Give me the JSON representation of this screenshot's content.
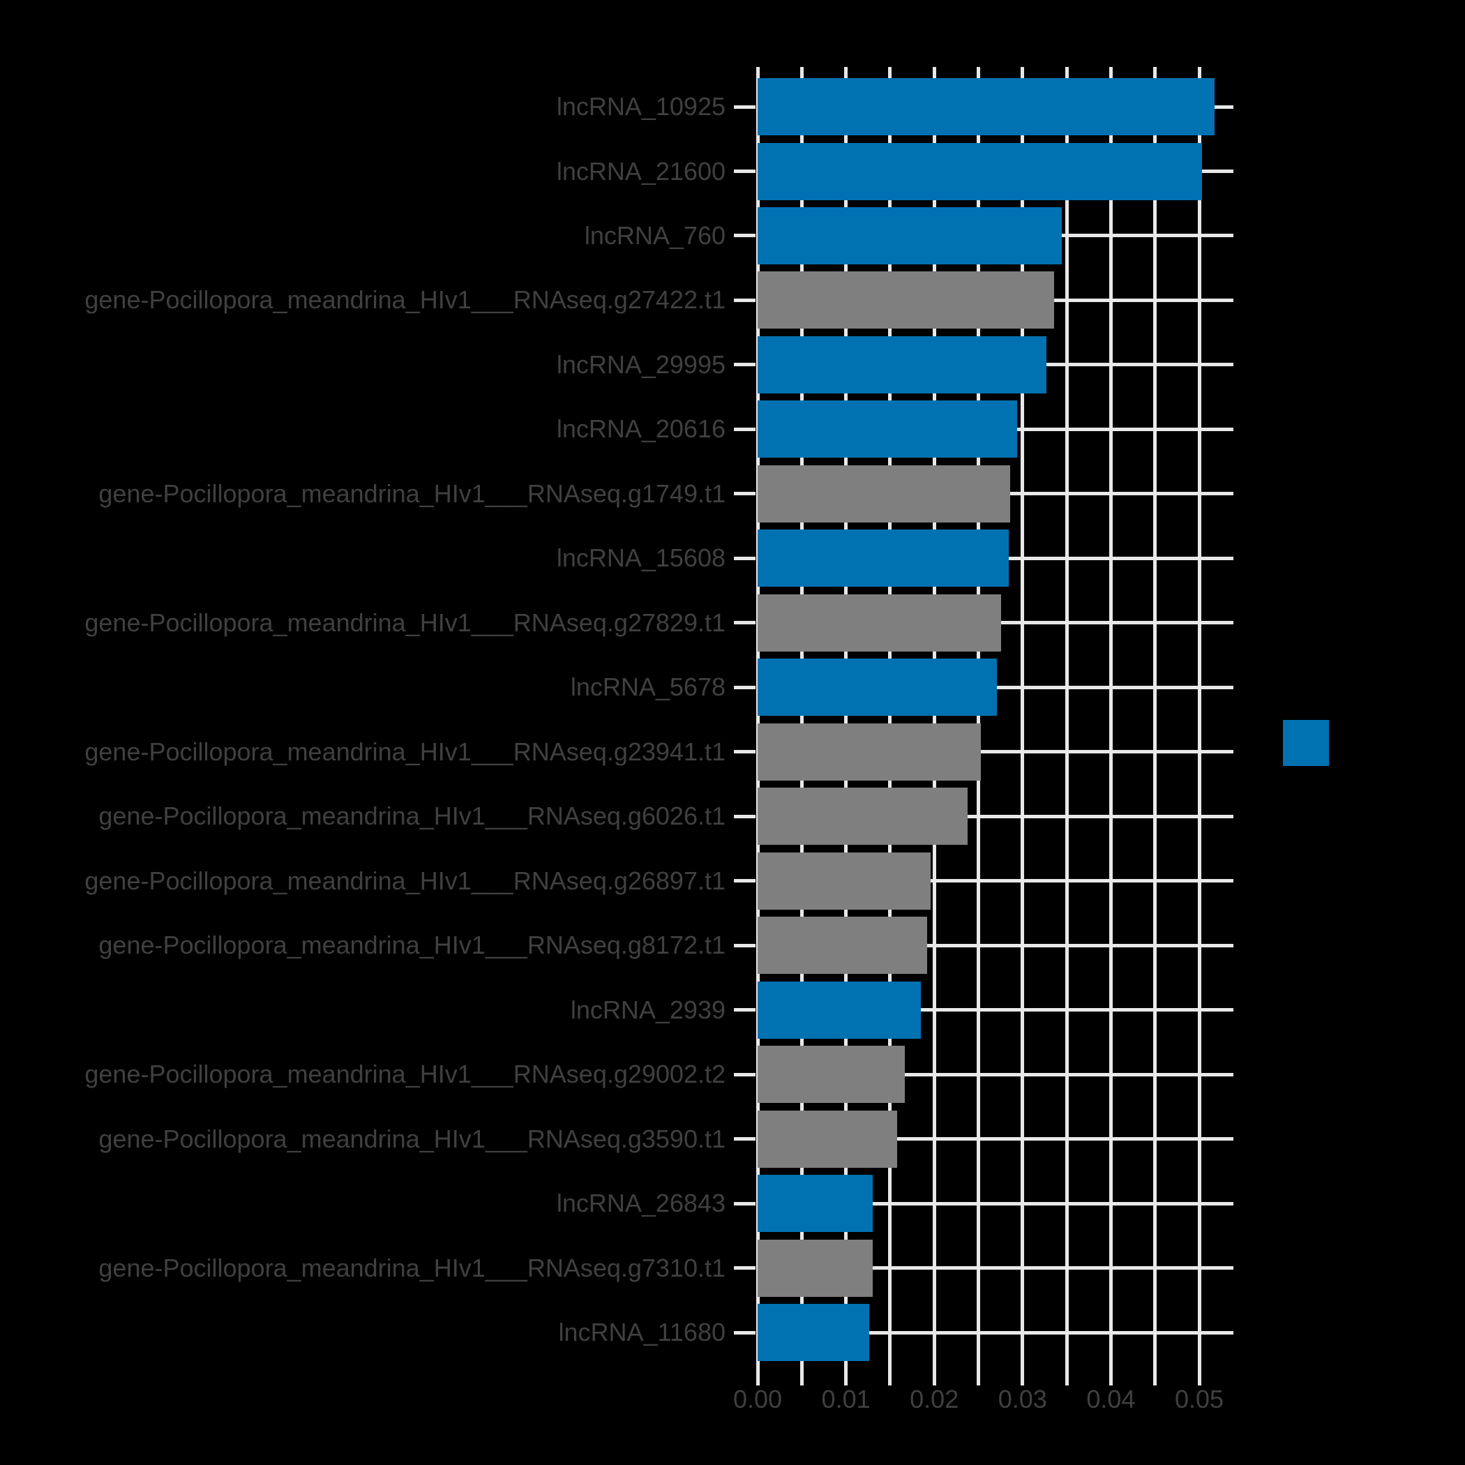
{
  "chart_data": {
    "type": "bar",
    "orientation": "horizontal",
    "title": "",
    "xlabel": "",
    "ylabel": "",
    "categories": [
      "lncRNA_10925",
      "lncRNA_21600",
      "lncRNA_760",
      "gene-Pocillopora_meandrina_HIv1___RNAseq.g27422.t1",
      "lncRNA_29995",
      "lncRNA_20616",
      "gene-Pocillopora_meandrina_HIv1___RNAseq.g1749.t1",
      "lncRNA_15608",
      "gene-Pocillopora_meandrina_HIv1___RNAseq.g27829.t1",
      "lncRNA_5678",
      "gene-Pocillopora_meandrina_HIv1___RNAseq.g23941.t1",
      "gene-Pocillopora_meandrina_HIv1___RNAseq.g6026.t1",
      "gene-Pocillopora_meandrina_HIv1___RNAseq.g26897.t1",
      "gene-Pocillopora_meandrina_HIv1___RNAseq.g8172.t1",
      "lncRNA_2939",
      "gene-Pocillopora_meandrina_HIv1___RNAseq.g29002.t2",
      "gene-Pocillopora_meandrina_HIv1___RNAseq.g3590.t1",
      "lncRNA_26843",
      "gene-Pocillopora_meandrina_HIv1___RNAseq.g7310.t1",
      "lncRNA_11680"
    ],
    "values": [
      0.0517,
      0.0503,
      0.0344,
      0.0336,
      0.0327,
      0.0294,
      0.0286,
      0.0284,
      0.0276,
      0.0271,
      0.0253,
      0.0238,
      0.0196,
      0.0192,
      0.0185,
      0.0167,
      0.0158,
      0.013,
      0.013,
      0.0126
    ],
    "category_types": [
      "lncRNA",
      "lncRNA",
      "lncRNA",
      "gene",
      "lncRNA",
      "lncRNA",
      "gene",
      "lncRNA",
      "gene",
      "lncRNA",
      "gene",
      "gene",
      "gene",
      "gene",
      "lncRNA",
      "gene",
      "gene",
      "lncRNA",
      "gene",
      "lncRNA"
    ],
    "type_colors": {
      "lncRNA": "#0072b2",
      "gene": "#7f7f7f"
    },
    "x_tick_labels": [
      "0.00",
      "0.01",
      "0.02",
      "0.03",
      "0.04",
      "0.05"
    ],
    "x_ticks": [
      0.0,
      0.01,
      0.02,
      0.03,
      0.04,
      0.05
    ],
    "x_minor_step": 0.005,
    "xlim": [
      0.0,
      0.054
    ],
    "grid": true,
    "legend_position": "outside-center-right",
    "background_color": "#000000",
    "grid_color": "#e8e8e8",
    "text_color": "#404040"
  },
  "legend": {
    "swatch_color": "#0072b2"
  }
}
